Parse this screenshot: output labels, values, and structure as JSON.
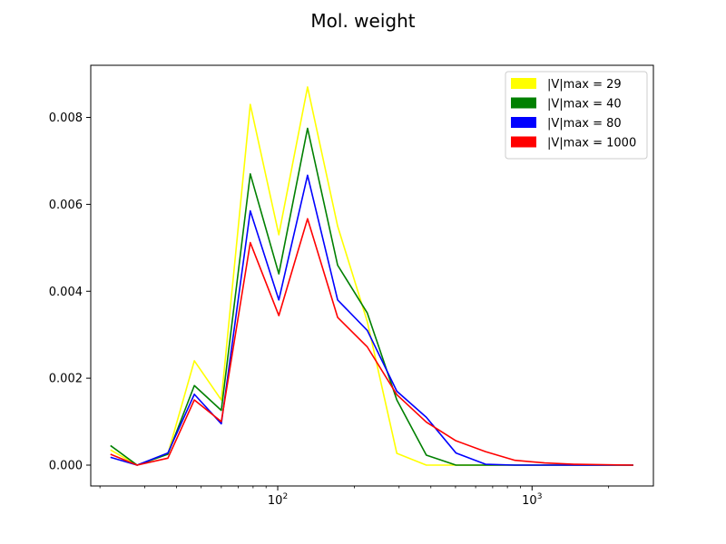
{
  "chart_data": {
    "type": "line",
    "title": "Mol. weight",
    "xlabel": "",
    "ylabel": "",
    "xscale": "log",
    "xlim": [
      18.4,
      3000
    ],
    "ylim": [
      -0.00048,
      0.0092
    ],
    "grid": false,
    "legend_position": "top-right",
    "xticks": [
      {
        "value": 100,
        "base": "10",
        "exp": "2"
      },
      {
        "value": 1000,
        "base": "10",
        "exp": "3"
      }
    ],
    "yticks": [
      {
        "value": 0.0,
        "label": "0.000"
      },
      {
        "value": 0.002,
        "label": "0.002"
      },
      {
        "value": 0.004,
        "label": "0.004"
      },
      {
        "value": 0.006,
        "label": "0.006"
      },
      {
        "value": 0.008,
        "label": "0.008"
      }
    ],
    "x": [
      22,
      28,
      37,
      47,
      60,
      78,
      101,
      131,
      172,
      225,
      294,
      384,
      502,
      656,
      857,
      1120,
      1464,
      1913,
      2500
    ],
    "series": [
      {
        "name": "|V|max = 29",
        "color": "#ffff00",
        "values": [
          0.00035,
          0.0,
          0.00026,
          0.0024,
          0.0015,
          0.0083,
          0.0053,
          0.0087,
          0.0055,
          0.0033,
          0.00027,
          0.0,
          0.0,
          0.0,
          0.0,
          0.0,
          0.0,
          0.0,
          0.0
        ]
      },
      {
        "name": "|V|max = 40",
        "color": "#008000",
        "values": [
          0.00045,
          0.0,
          0.00025,
          0.00183,
          0.00126,
          0.0067,
          0.0044,
          0.00775,
          0.0046,
          0.0035,
          0.0015,
          0.00023,
          0.0,
          0.0,
          0.0,
          0.0,
          0.0,
          0.0,
          0.0
        ]
      },
      {
        "name": "|V|max = 80",
        "color": "#0000ff",
        "values": [
          0.00018,
          0.0,
          0.00028,
          0.00163,
          0.00095,
          0.00585,
          0.0038,
          0.00667,
          0.0038,
          0.0031,
          0.0017,
          0.0011,
          0.00028,
          2e-05,
          0.0,
          0.0,
          0.0,
          0.0,
          0.0
        ]
      },
      {
        "name": "|V|max = 1000",
        "color": "#ff0000",
        "values": [
          0.00025,
          0.0,
          0.00016,
          0.0015,
          0.001,
          0.00512,
          0.00344,
          0.00567,
          0.0034,
          0.00272,
          0.00162,
          0.00099,
          0.00056,
          0.00031,
          0.00011,
          5e-05,
          2e-05,
          1e-05,
          0.0
        ]
      }
    ]
  }
}
